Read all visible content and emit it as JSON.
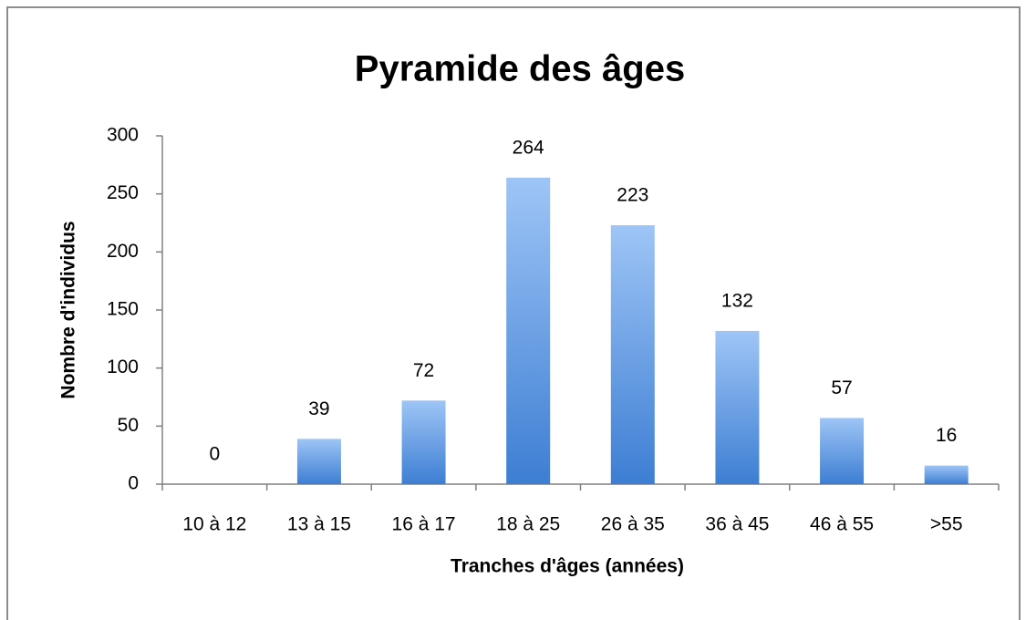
{
  "chart_data": {
    "type": "bar",
    "title": "Pyramide des âges",
    "x_label": "Tranches d'âges (années)",
    "y_label": "Nombre d'individus",
    "categories": [
      "10 à 12",
      "13 à 15",
      "16 à 17",
      "18 à 25",
      "26 à 35",
      "36 à 45",
      "46 à 55",
      ">55"
    ],
    "values": [
      0,
      39,
      72,
      264,
      223,
      132,
      57,
      16
    ],
    "color": [
      "#9ec5f6",
      "#3d7ed3"
    ],
    "ylim": [
      0,
      300
    ],
    "yticks": [
      0,
      50,
      100,
      150,
      200,
      250,
      300
    ],
    "grid": false
  }
}
